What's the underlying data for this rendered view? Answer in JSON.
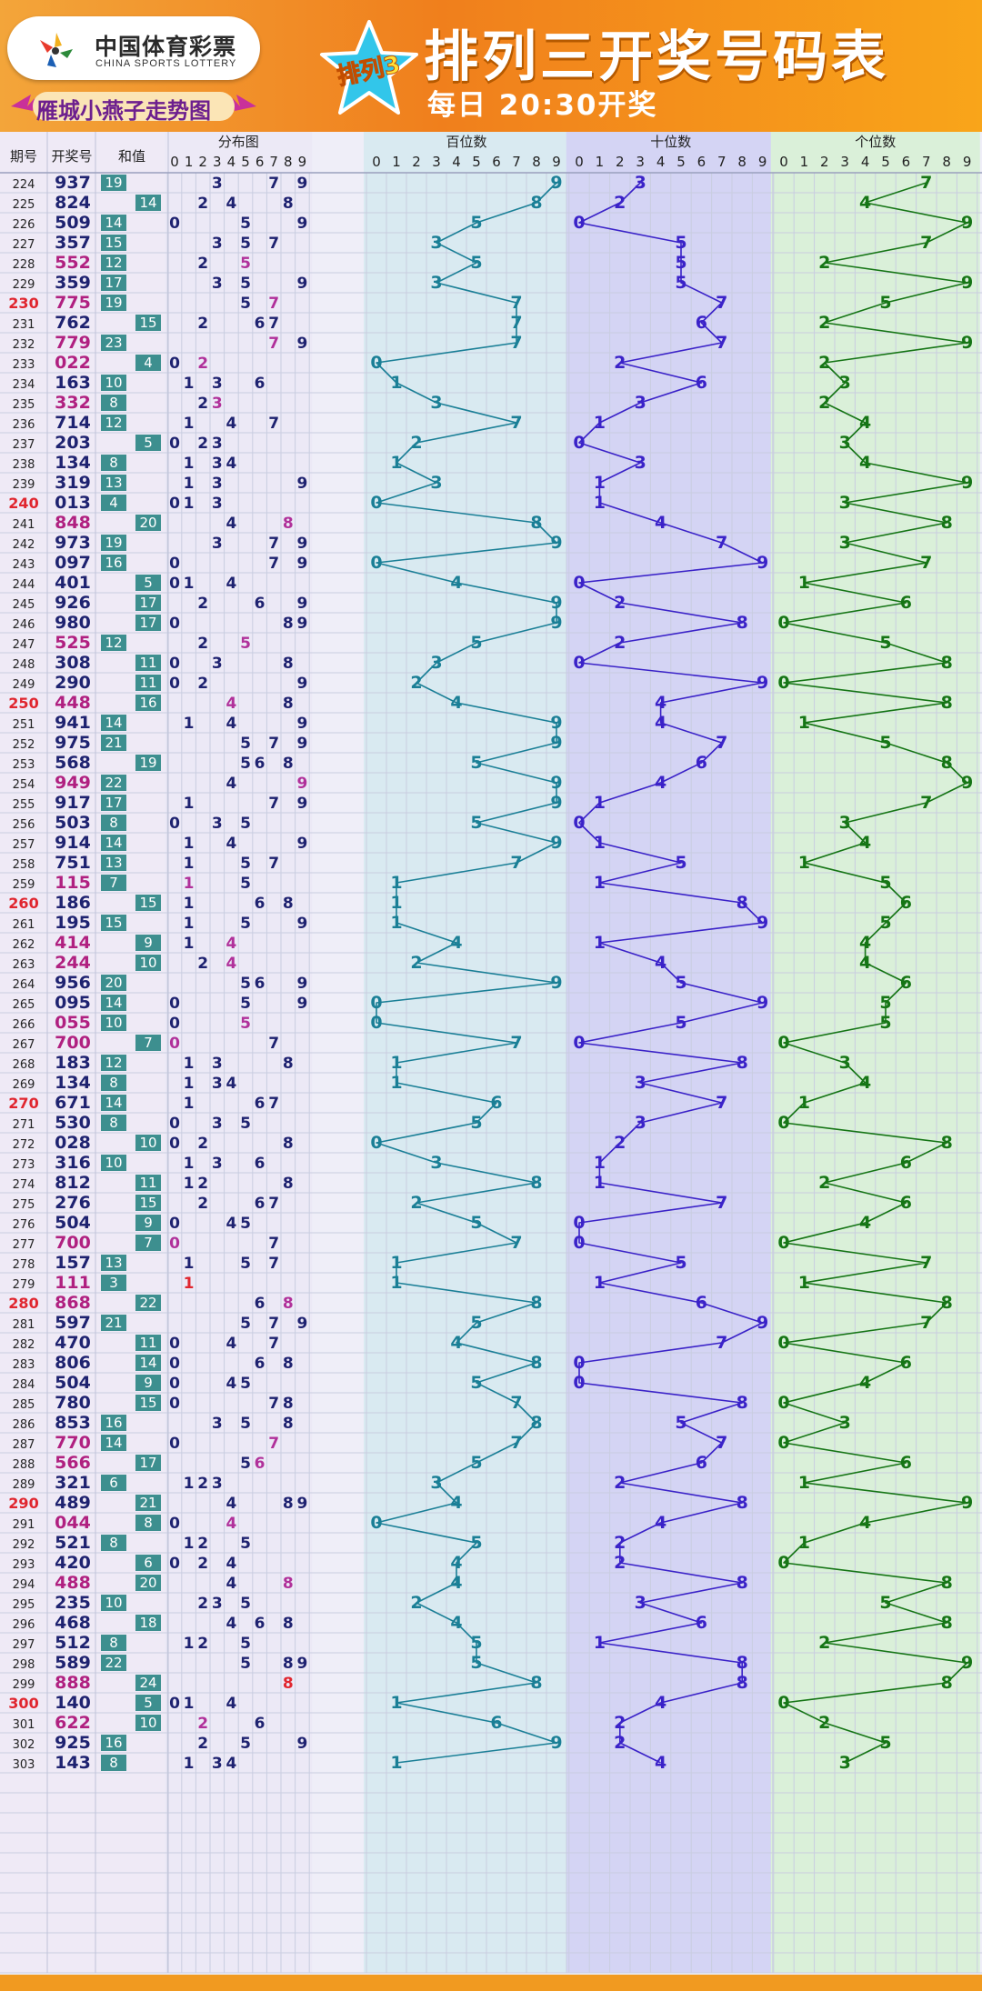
{
  "header": {
    "logo_cn": "中国体育彩票",
    "logo_en": "CHINA SPORTS LOTTERY",
    "subtitle": "雁城小燕子走势图",
    "badge": "排列3",
    "title": "排列三开奖号码表",
    "draw_time": "每日 20:30开奖"
  },
  "colors": {
    "header_orange": "#f07f1c",
    "hundreds": "#1a7f96",
    "tens": "#3a22c8",
    "units": "#157515",
    "sum_box": "#3d8f8f",
    "accent_period": "#e0262f",
    "repeat_number": "#b02080"
  },
  "chart_data": {
    "type": "table",
    "columns": {
      "period": "期号",
      "number": "开奖号",
      "sum": "和值",
      "distribution": "分布图",
      "hundreds": "百位数",
      "tens": "十位数",
      "units": "个位数"
    },
    "digits": [
      "0",
      "1",
      "2",
      "3",
      "4",
      "5",
      "6",
      "7",
      "8",
      "9"
    ],
    "draws": [
      [
        "224",
        "937"
      ],
      [
        "225",
        "824"
      ],
      [
        "226",
        "509"
      ],
      [
        "227",
        "357"
      ],
      [
        "228",
        "552"
      ],
      [
        "229",
        "359"
      ],
      [
        "230",
        "775"
      ],
      [
        "231",
        "762"
      ],
      [
        "232",
        "779"
      ],
      [
        "233",
        "022"
      ],
      [
        "234",
        "163"
      ],
      [
        "235",
        "332"
      ],
      [
        "236",
        "714"
      ],
      [
        "237",
        "203"
      ],
      [
        "238",
        "134"
      ],
      [
        "239",
        "319"
      ],
      [
        "240",
        "013"
      ],
      [
        "241",
        "848"
      ],
      [
        "242",
        "973"
      ],
      [
        "243",
        "097"
      ],
      [
        "244",
        "401"
      ],
      [
        "245",
        "926"
      ],
      [
        "246",
        "980"
      ],
      [
        "247",
        "525"
      ],
      [
        "248",
        "308"
      ],
      [
        "249",
        "290"
      ],
      [
        "250",
        "448"
      ],
      [
        "251",
        "941"
      ],
      [
        "252",
        "975"
      ],
      [
        "253",
        "568"
      ],
      [
        "254",
        "949"
      ],
      [
        "255",
        "917"
      ],
      [
        "256",
        "503"
      ],
      [
        "257",
        "914"
      ],
      [
        "258",
        "751"
      ],
      [
        "259",
        "115"
      ],
      [
        "260",
        "186"
      ],
      [
        "261",
        "195"
      ],
      [
        "262",
        "414"
      ],
      [
        "263",
        "244"
      ],
      [
        "264",
        "956"
      ],
      [
        "265",
        "095"
      ],
      [
        "266",
        "055"
      ],
      [
        "267",
        "700"
      ],
      [
        "268",
        "183"
      ],
      [
        "269",
        "134"
      ],
      [
        "270",
        "671"
      ],
      [
        "271",
        "530"
      ],
      [
        "272",
        "028"
      ],
      [
        "273",
        "316"
      ],
      [
        "274",
        "812"
      ],
      [
        "275",
        "276"
      ],
      [
        "276",
        "504"
      ],
      [
        "277",
        "700"
      ],
      [
        "278",
        "157"
      ],
      [
        "279",
        "111"
      ],
      [
        "280",
        "868"
      ],
      [
        "281",
        "597"
      ],
      [
        "282",
        "470"
      ],
      [
        "283",
        "806"
      ],
      [
        "284",
        "504"
      ],
      [
        "285",
        "780"
      ],
      [
        "286",
        "853"
      ],
      [
        "287",
        "770"
      ],
      [
        "288",
        "566"
      ],
      [
        "289",
        "321"
      ],
      [
        "290",
        "489"
      ],
      [
        "291",
        "044"
      ],
      [
        "292",
        "521"
      ],
      [
        "293",
        "420"
      ],
      [
        "294",
        "488"
      ],
      [
        "295",
        "235"
      ],
      [
        "296",
        "468"
      ],
      [
        "297",
        "512"
      ],
      [
        "298",
        "589"
      ],
      [
        "299",
        "888"
      ],
      [
        "300",
        "140"
      ],
      [
        "301",
        "622"
      ],
      [
        "302",
        "925"
      ],
      [
        "303",
        "143"
      ]
    ]
  }
}
